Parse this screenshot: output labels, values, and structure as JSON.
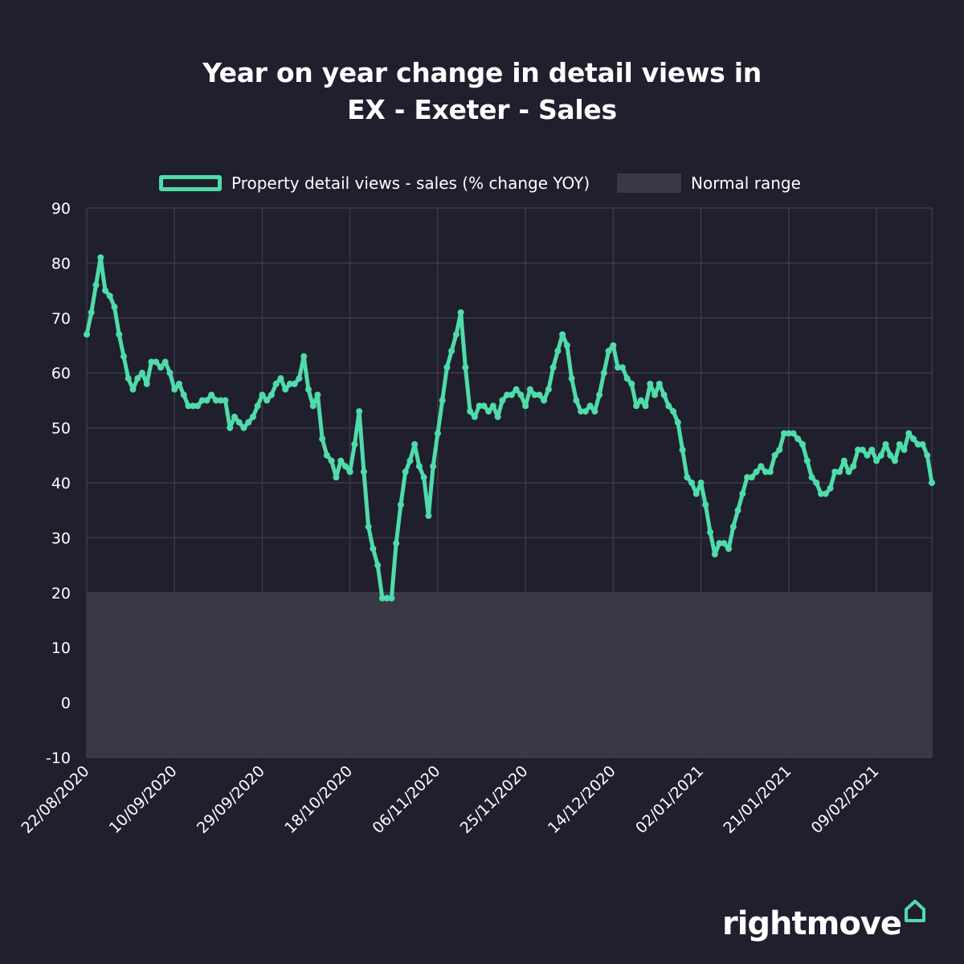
{
  "title_line1": "Year on year change in detail views in",
  "title_line2": "EX - Exeter - Sales",
  "legend": {
    "series_label": "Property detail views - sales (% change YOY)",
    "range_label": "Normal range"
  },
  "brand": "rightmove",
  "colors": {
    "background": "#1f1f2e",
    "line": "#4fdcaa",
    "normal_range": "#393946",
    "grid": "#3a3a4a"
  },
  "chart_data": {
    "type": "line",
    "title": "Year on year change in detail views in EX - Exeter - Sales",
    "xlabel": "",
    "ylabel": "",
    "ylim": [
      -10,
      90
    ],
    "yticks": [
      -10,
      0,
      10,
      20,
      30,
      40,
      50,
      60,
      70,
      80,
      90
    ],
    "x_start": "22/08/2020",
    "x_end": "20/02/2021",
    "xtick_labels": [
      "22/08/2020",
      "10/09/2020",
      "29/09/2020",
      "18/10/2020",
      "06/11/2020",
      "25/11/2020",
      "14/12/2020",
      "02/01/2021",
      "21/01/2021",
      "09/02/2021"
    ],
    "normal_range": [
      -10,
      20
    ],
    "grid": true,
    "legend_position": "top",
    "series": [
      {
        "name": "Property detail views - sales (% change YOY)",
        "values": [
          67,
          71,
          76,
          81,
          75,
          74,
          72,
          67,
          63,
          59,
          57,
          59,
          60,
          58,
          62,
          62,
          61,
          62,
          60,
          57,
          58,
          56,
          54,
          54,
          54,
          55,
          55,
          56,
          55,
          55,
          55,
          50,
          52,
          51,
          50,
          51,
          52,
          54,
          56,
          55,
          56,
          58,
          59,
          57,
          58,
          58,
          59,
          63,
          57,
          54,
          56,
          48,
          45,
          44,
          41,
          44,
          43,
          42,
          47,
          53,
          42,
          32,
          28,
          25,
          19,
          19,
          19,
          29,
          36,
          42,
          44,
          47,
          43,
          41,
          34,
          43,
          49,
          55,
          61,
          64,
          67,
          71,
          61,
          53,
          52,
          54,
          54,
          53,
          54,
          52,
          55,
          56,
          56,
          57,
          56,
          54,
          57,
          56,
          56,
          55,
          57,
          61,
          64,
          67,
          65,
          59,
          55,
          53,
          53,
          54,
          53,
          56,
          60,
          64,
          65,
          61,
          61,
          59,
          58,
          54,
          55,
          54,
          58,
          56,
          58,
          56,
          54,
          53,
          51,
          46,
          41,
          40,
          38,
          40,
          36,
          31,
          27,
          29,
          29,
          28,
          32,
          35,
          38,
          41,
          41,
          42,
          43,
          42,
          42,
          45,
          46,
          49,
          49,
          49,
          48,
          47,
          44,
          41,
          40,
          38,
          38,
          39,
          42,
          42,
          44,
          42,
          43,
          46,
          46,
          45,
          46,
          44,
          45,
          47,
          45,
          44,
          47,
          46,
          49,
          48,
          47,
          47,
          45,
          40
        ]
      }
    ]
  }
}
